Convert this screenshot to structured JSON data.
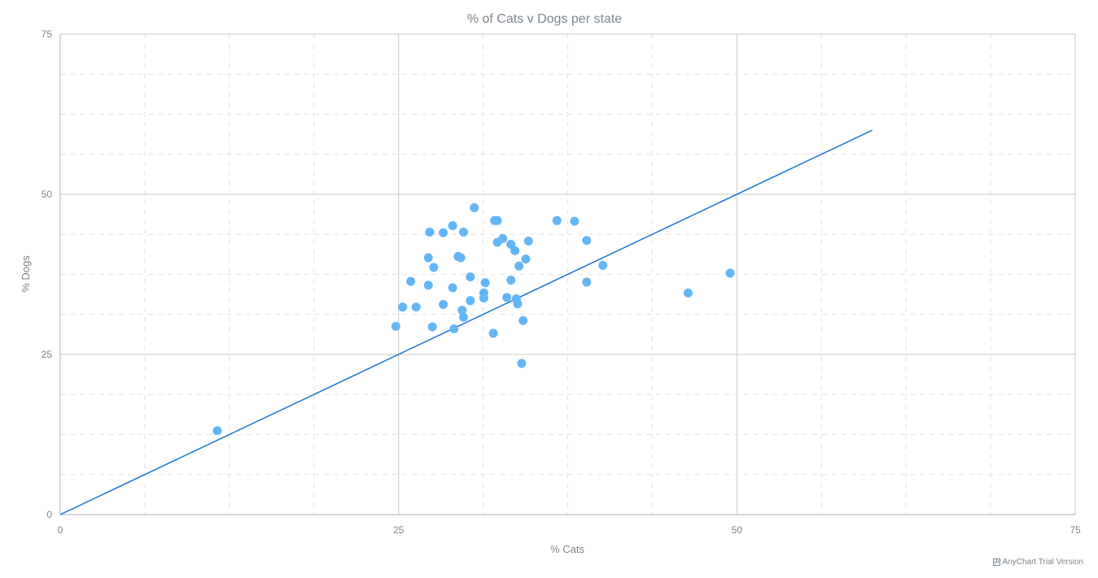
{
  "chart_data": {
    "type": "scatter",
    "title": "% of Cats v Dogs per state",
    "xlabel": "% Cats",
    "ylabel": "% Dogs",
    "xlim": [
      0,
      75
    ],
    "ylim": [
      0,
      75
    ],
    "xticks": [
      "0",
      "25",
      "50",
      "75"
    ],
    "yticks": [
      "0",
      "25",
      "50",
      "75"
    ],
    "grid": true,
    "marker_color": "#64b5f6",
    "line_color": "#1976d2",
    "series": [
      {
        "type": "scatter",
        "points": [
          [
            11.6,
            13.1
          ],
          [
            24.8,
            29.4
          ],
          [
            25.3,
            32.4
          ],
          [
            25.9,
            36.4
          ],
          [
            26.3,
            32.4
          ],
          [
            27.3,
            44.1
          ],
          [
            27.2,
            40.1
          ],
          [
            27.6,
            38.6
          ],
          [
            27.2,
            35.8
          ],
          [
            27.5,
            29.3
          ],
          [
            28.3,
            44.0
          ],
          [
            28.3,
            32.8
          ],
          [
            29.0,
            45.1
          ],
          [
            29.0,
            35.4
          ],
          [
            29.1,
            29.0
          ],
          [
            29.4,
            40.3
          ],
          [
            29.6,
            40.1
          ],
          [
            29.8,
            44.1
          ],
          [
            29.7,
            31.9
          ],
          [
            29.8,
            30.8
          ],
          [
            30.3,
            37.1
          ],
          [
            30.3,
            33.4
          ],
          [
            30.6,
            47.9
          ],
          [
            31.3,
            34.6
          ],
          [
            31.4,
            36.2
          ],
          [
            31.3,
            33.8
          ],
          [
            32.0,
            28.3
          ],
          [
            32.1,
            45.9
          ],
          [
            32.3,
            45.9
          ],
          [
            32.3,
            42.5
          ],
          [
            32.7,
            43.1
          ],
          [
            33.0,
            33.9
          ],
          [
            33.3,
            42.2
          ],
          [
            33.3,
            36.6
          ],
          [
            33.6,
            41.2
          ],
          [
            33.7,
            33.7
          ],
          [
            33.8,
            32.9
          ],
          [
            33.9,
            38.8
          ],
          [
            34.1,
            23.6
          ],
          [
            34.2,
            30.3
          ],
          [
            34.4,
            39.9
          ],
          [
            34.6,
            42.7
          ],
          [
            36.7,
            45.9
          ],
          [
            38.0,
            45.8
          ],
          [
            38.9,
            42.8
          ],
          [
            38.9,
            36.3
          ],
          [
            40.1,
            38.9
          ],
          [
            46.4,
            34.6
          ],
          [
            49.5,
            37.7
          ]
        ]
      },
      {
        "type": "line",
        "points": [
          [
            0,
            0
          ],
          [
            60,
            60
          ]
        ]
      }
    ]
  },
  "credit": {
    "text": "AnyChart Trial Version"
  }
}
